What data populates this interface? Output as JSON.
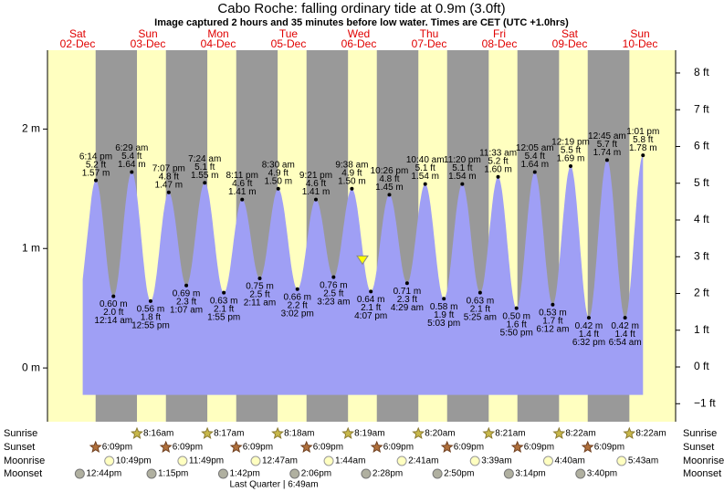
{
  "chart_data": {
    "type": "tide",
    "title": "Cabo Roche: falling  ordinary tide at 0.9m (3.0ft)",
    "subtitle": "Image captured 2 hours and 35 minutes before low water. Times are CET (UTC +1.0hrs)",
    "days": [
      "Sat",
      "Sun",
      "Mon",
      "Tue",
      "Wed",
      "Thu",
      "Fri",
      "Sat",
      "Sun"
    ],
    "dates": [
      "02-Dec",
      "03-Dec",
      "04-Dec",
      "05-Dec",
      "06-Dec",
      "07-Dec",
      "08-Dec",
      "09-Dec",
      "10-Dec"
    ],
    "ylim": [
      -0.45,
      2.66
    ],
    "yticks": [
      {
        "value": 0,
        "label": "0 m"
      },
      {
        "value": 1,
        "label": "1 m"
      },
      {
        "value": 2,
        "label": "2 m"
      }
    ],
    "y2lim": [
      -1.49,
      8.62
    ],
    "y2ticks": [
      {
        "value": -1,
        "label": "−1 ft"
      },
      {
        "value": 0,
        "label": "0 ft"
      },
      {
        "value": 1,
        "label": "1 ft"
      },
      {
        "value": 2,
        "label": "2 ft"
      },
      {
        "value": 3,
        "label": "3 ft"
      },
      {
        "value": 4,
        "label": "4 ft"
      },
      {
        "value": 5,
        "label": "5 ft"
      },
      {
        "value": 6,
        "label": "6 ft"
      },
      {
        "value": 7,
        "label": "7 ft"
      },
      {
        "value": 8,
        "label": "8 ft"
      }
    ],
    "tides": {
      "color": "#9f9ff5",
      "times": [
        "6:14 pm",
        "12:14 am",
        "6:29 am",
        "12:55 pm",
        "7:07 pm",
        "1:07 am",
        "7:24 am",
        "1:55 pm",
        "8:11 pm",
        "2:11 am",
        "8:30 am",
        "3:02 pm",
        "9:21 pm",
        "3:23 am",
        "9:38 am",
        "4:07 pm",
        "10:26 pm",
        "4:29 am",
        "10:40 am",
        "5:03 pm",
        "11:20 pm",
        "5:25 am",
        "11:33 am",
        "5:50 pm",
        "12:05 am",
        "6:12 am",
        "12:19 pm",
        "6:32 pm",
        "12:45 am",
        "6:54 am",
        "1:01 pm"
      ],
      "values": [
        1.57,
        0.6,
        1.64,
        0.56,
        1.47,
        0.69,
        1.55,
        0.63,
        1.41,
        0.75,
        1.5,
        0.66,
        1.41,
        0.76,
        1.5,
        0.64,
        1.45,
        0.71,
        1.54,
        0.58,
        1.54,
        0.63,
        1.6,
        0.5,
        1.64,
        0.53,
        1.69,
        0.42,
        1.74,
        0.42,
        1.78
      ],
      "value_labels": [
        "1.57 m",
        "0.60 m",
        "1.64 m",
        "0.56 m",
        "1.47 m",
        "0.69 m",
        "1.55 m",
        "0.63 m",
        "1.41 m",
        "0.75 m",
        "1.50 m",
        "0.66 m",
        "1.41 m",
        "0.76 m",
        "1.50 m",
        "0.64 m",
        "1.45 m",
        "0.71 m",
        "1.54 m",
        "0.58 m",
        "1.54 m",
        "0.63 m",
        "1.60 m",
        "0.50 m",
        "1.64 m",
        "0.53 m",
        "1.69 m",
        "0.42 m",
        "1.74 m",
        "0.42 m",
        "1.78 m"
      ],
      "ft_labels": [
        "5.2 ft",
        "2.0 ft",
        "5.4 ft",
        "1.8 ft",
        "4.8 ft",
        "2.3 ft",
        "5.1 ft",
        "2.1 ft",
        "4.6 ft",
        "2.5 ft",
        "4.9 ft",
        "2.2 ft",
        "4.6 ft",
        "2.5 ft",
        "4.9 ft",
        "2.1 ft",
        "4.8 ft",
        "2.3 ft",
        "5.1 ft",
        "1.9 ft",
        "5.1 ft",
        "2.1 ft",
        "5.2 ft",
        "1.6 ft",
        "5.4 ft",
        "1.7 ft",
        "5.5 ft",
        "1.4 ft",
        "5.7 ft",
        "1.4 ft",
        "5.8 ft"
      ]
    },
    "now_level": 0.9,
    "rows": [
      {
        "name": "Sunrise",
        "times": [
          null,
          "8:16am",
          "8:17am",
          "8:18am",
          "8:19am",
          "8:20am",
          "8:21am",
          "8:22am",
          "8:22am"
        ]
      },
      {
        "name": "Sunset",
        "times": [
          "6:09pm",
          "6:09pm",
          "6:09pm",
          "6:09pm",
          "6:09pm",
          "6:09pm",
          "6:09pm",
          "6:09pm",
          null
        ]
      },
      {
        "name": "Moonrise",
        "times": [
          "10:49pm",
          "11:49pm",
          null,
          "12:47am",
          "1:44am",
          "2:41am",
          "3:39am",
          "4:40am",
          "5:43am"
        ]
      },
      {
        "name": "Moonset",
        "times": [
          "12:44pm",
          "1:15pm",
          "1:42pm",
          "2:06pm",
          "2:28pm",
          "2:50pm",
          "3:14pm",
          "3:40pm",
          null
        ]
      }
    ],
    "moon_phase": "Last Quarter | 6:49am"
  }
}
